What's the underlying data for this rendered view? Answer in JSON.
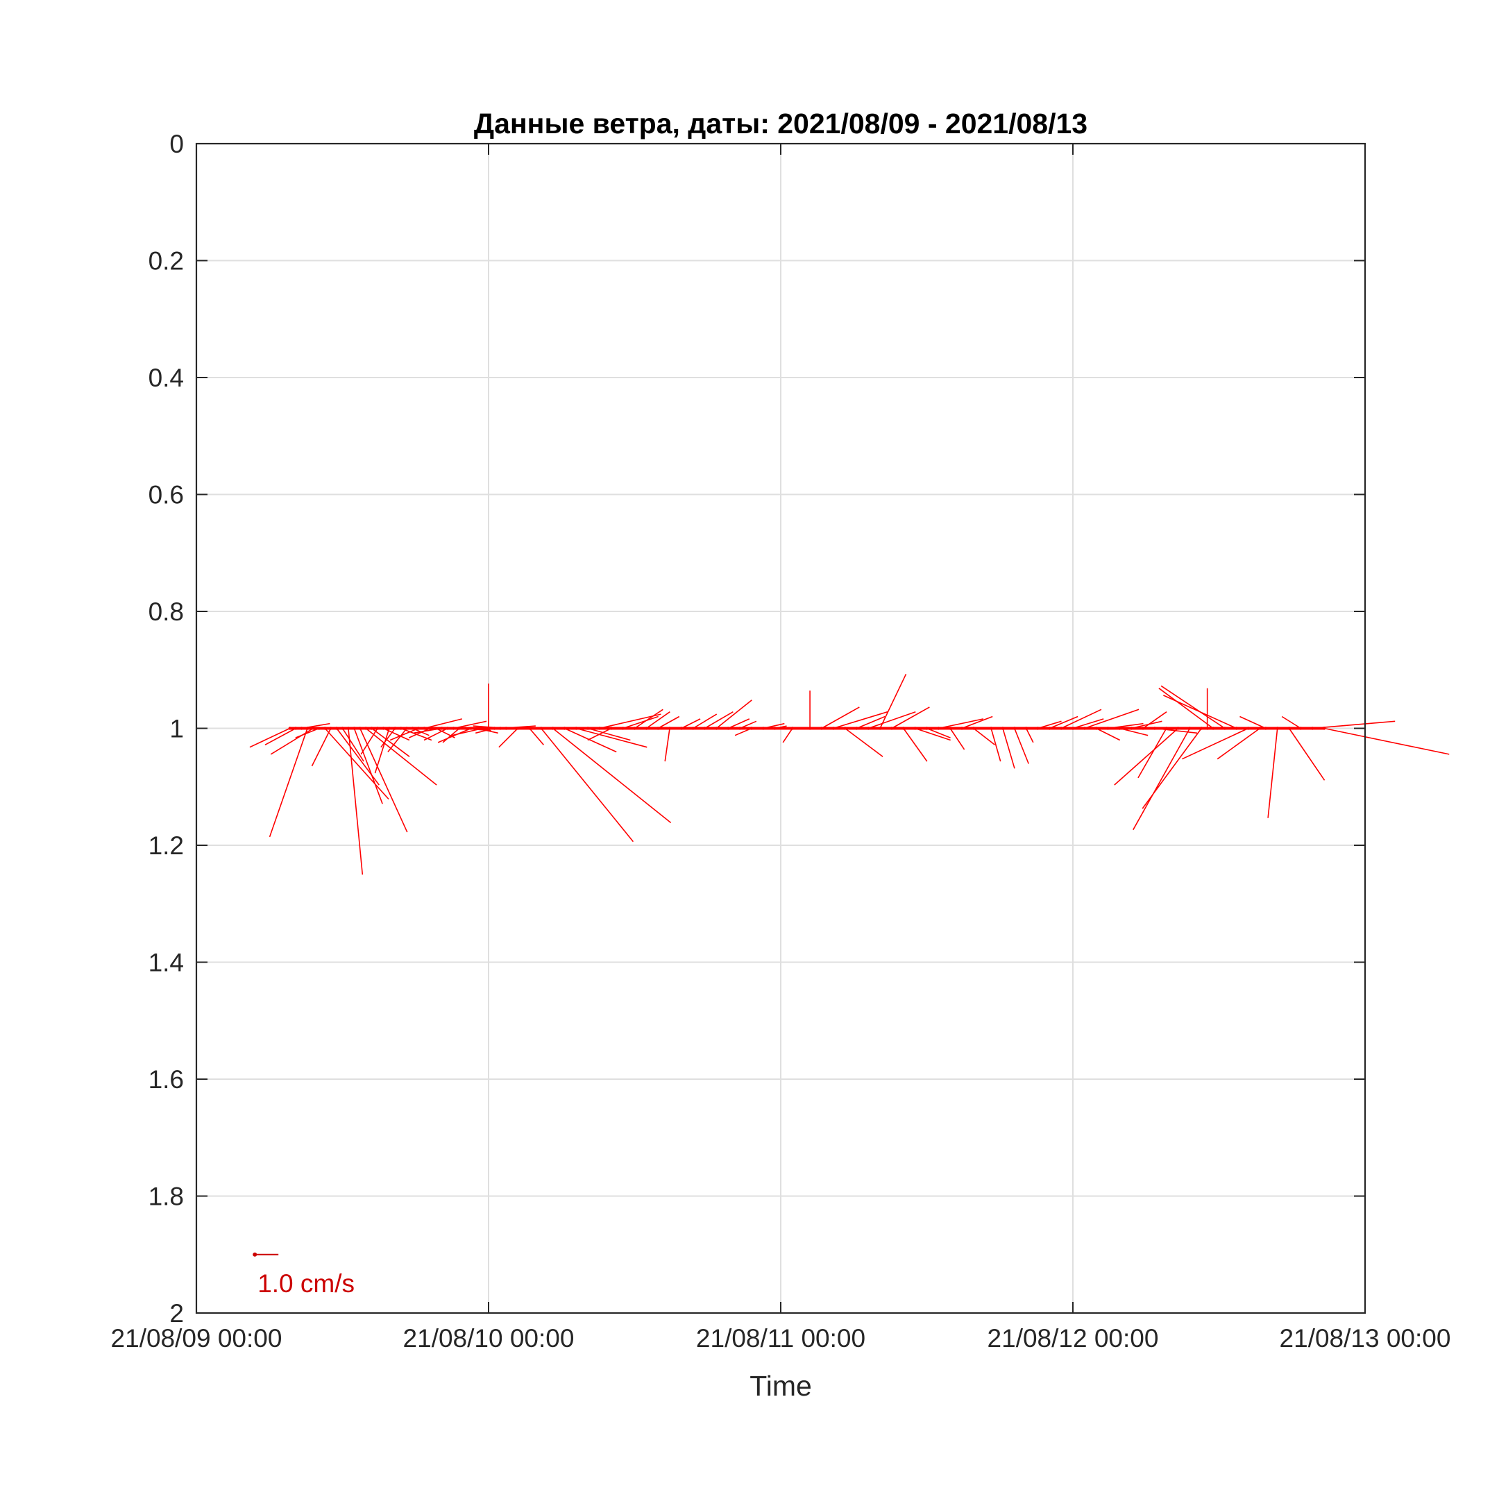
{
  "chart_data": {
    "type": "quiver",
    "title": "Данные ветра, даты: 2021/08/09 - 2021/08/13",
    "xlabel": "Time",
    "ylabel": "",
    "x_ticks": [
      "21/08/09 00:00",
      "21/08/10 00:00",
      "21/08/11 00:00",
      "21/08/12 00:00",
      "21/08/13 00:00"
    ],
    "y_ticks": [
      "0",
      "0.2",
      "0.4",
      "0.6",
      "0.8",
      "1",
      "1.2",
      "1.4",
      "1.6",
      "1.8",
      "2"
    ],
    "xlim": [
      0,
      4
    ],
    "ylim": [
      0,
      2
    ],
    "y_reversed": true,
    "grid": true,
    "color": "#ff0000",
    "baseline_y": 1.0,
    "scale_legend": {
      "label": "1.0 cm/s",
      "x": 0.2,
      "y": 1.9,
      "u": 1.0,
      "v": 0,
      "color": "#cc0000"
    },
    "vectors_note_units": "x = days since 2021/08/09 00:00, u/v = cm/s",
    "vectors": [
      {
        "x": 0.32,
        "u": -1.7,
        "v": -0.8
      },
      {
        "x": 0.34,
        "u": -1.3,
        "v": -0.7
      },
      {
        "x": 0.36,
        "u": 1.2,
        "v": 0.2
      },
      {
        "x": 0.38,
        "u": -1.6,
        "v": -4.6
      },
      {
        "x": 0.4,
        "u": -1.8,
        "v": -1.1
      },
      {
        "x": 0.42,
        "u": -1.0,
        "v": -0.4
      },
      {
        "x": 0.44,
        "u": 2.7,
        "v": -3.0
      },
      {
        "x": 0.46,
        "u": -0.8,
        "v": -1.6
      },
      {
        "x": 0.48,
        "u": 1.8,
        "v": -2.4
      },
      {
        "x": 0.5,
        "u": 0.9,
        "v": -1.4
      },
      {
        "x": 0.52,
        "u": 0.6,
        "v": -6.2
      },
      {
        "x": 0.54,
        "u": 1.2,
        "v": -3.2
      },
      {
        "x": 0.56,
        "u": 2.0,
        "v": -4.4
      },
      {
        "x": 0.58,
        "u": 3.0,
        "v": -2.4
      },
      {
        "x": 0.6,
        "u": 1.6,
        "v": -1.2
      },
      {
        "x": 0.62,
        "u": -0.7,
        "v": -1.1
      },
      {
        "x": 0.64,
        "u": 1.1,
        "v": -0.5
      },
      {
        "x": 0.66,
        "u": -0.6,
        "v": -1.9
      },
      {
        "x": 0.68,
        "u": -0.6,
        "v": -0.8
      },
      {
        "x": 0.7,
        "u": 1.3,
        "v": -0.5
      },
      {
        "x": 0.72,
        "u": -0.8,
        "v": -1.0
      },
      {
        "x": 0.74,
        "u": 0.7,
        "v": -0.3
      },
      {
        "x": 0.76,
        "u": -1.2,
        "v": -0.5
      },
      {
        "x": 0.78,
        "u": 1.6,
        "v": 0.4
      },
      {
        "x": 0.8,
        "u": -0.9,
        "v": -0.4
      },
      {
        "x": 0.82,
        "u": 0.8,
        "v": -0.4
      },
      {
        "x": 0.84,
        "u": -1.2,
        "v": -0.2
      },
      {
        "x": 0.86,
        "u": -1.0,
        "v": -0.5
      },
      {
        "x": 0.88,
        "u": 1.4,
        "v": 0.3
      },
      {
        "x": 0.9,
        "u": -0.7,
        "v": -0.6
      },
      {
        "x": 0.92,
        "u": 1.1,
        "v": -0.1
      },
      {
        "x": 0.94,
        "u": -1.4,
        "v": -0.6
      },
      {
        "x": 0.96,
        "u": 0.9,
        "v": -0.2
      },
      {
        "x": 0.98,
        "u": -1.3,
        "v": -0.3
      },
      {
        "x": 1.0,
        "u": 0.0,
        "v": 1.9
      },
      {
        "x": 1.02,
        "u": -0.8,
        "v": -0.2
      },
      {
        "x": 1.04,
        "u": 1.5,
        "v": 0.1
      },
      {
        "x": 1.06,
        "u": -1.4,
        "v": 0.1
      },
      {
        "x": 1.1,
        "u": -0.8,
        "v": -0.8
      },
      {
        "x": 1.14,
        "u": 0.6,
        "v": -0.7
      },
      {
        "x": 1.18,
        "u": 3.9,
        "v": -4.8
      },
      {
        "x": 1.22,
        "u": 5.0,
        "v": -4.0
      },
      {
        "x": 1.26,
        "u": 2.2,
        "v": -1.0
      },
      {
        "x": 1.3,
        "u": 3.0,
        "v": -0.8
      },
      {
        "x": 1.34,
        "u": 1.8,
        "v": -0.5
      },
      {
        "x": 1.38,
        "u": 2.6,
        "v": 0.6
      },
      {
        "x": 1.42,
        "u": -1.0,
        "v": -0.5
      },
      {
        "x": 1.46,
        "u": 1.5,
        "v": 0.5
      },
      {
        "x": 1.5,
        "u": 1.2,
        "v": 0.8
      },
      {
        "x": 1.54,
        "u": 1.0,
        "v": 0.7
      },
      {
        "x": 1.58,
        "u": 0.9,
        "v": 0.5
      },
      {
        "x": 1.62,
        "u": -0.2,
        "v": -1.4
      },
      {
        "x": 1.66,
        "u": 0.8,
        "v": 0.4
      },
      {
        "x": 1.7,
        "u": 1.0,
        "v": 0.6
      },
      {
        "x": 1.74,
        "u": 1.2,
        "v": 0.7
      },
      {
        "x": 1.78,
        "u": 1.5,
        "v": 1.2
      },
      {
        "x": 1.82,
        "u": 0.9,
        "v": 0.4
      },
      {
        "x": 1.86,
        "u": 0.7,
        "v": 0.3
      },
      {
        "x": 1.9,
        "u": -0.7,
        "v": -0.3
      },
      {
        "x": 1.94,
        "u": 0.9,
        "v": 0.2
      },
      {
        "x": 1.98,
        "u": 0.5,
        "v": 0.1
      },
      {
        "x": 2.04,
        "u": -0.4,
        "v": -0.6
      },
      {
        "x": 2.1,
        "u": 0.0,
        "v": 1.6
      },
      {
        "x": 2.14,
        "u": 1.6,
        "v": 0.9
      },
      {
        "x": 2.18,
        "u": 2.3,
        "v": 0.7
      },
      {
        "x": 2.22,
        "u": 1.6,
        "v": -1.2
      },
      {
        "x": 2.26,
        "u": 1.2,
        "v": 0.5
      },
      {
        "x": 2.3,
        "u": 2.0,
        "v": 0.7
      },
      {
        "x": 2.34,
        "u": 1.1,
        "v": 2.3
      },
      {
        "x": 2.38,
        "u": 1.6,
        "v": 0.9
      },
      {
        "x": 2.42,
        "u": 1.0,
        "v": -1.4
      },
      {
        "x": 2.46,
        "u": 1.5,
        "v": -0.5
      },
      {
        "x": 2.5,
        "u": 1.0,
        "v": -0.4
      },
      {
        "x": 2.54,
        "u": 1.9,
        "v": 0.4
      },
      {
        "x": 2.58,
        "u": 0.6,
        "v": -0.9
      },
      {
        "x": 2.62,
        "u": 1.3,
        "v": 0.5
      },
      {
        "x": 2.66,
        "u": 0.9,
        "v": -0.7
      },
      {
        "x": 2.72,
        "u": 0.4,
        "v": -1.4
      },
      {
        "x": 2.76,
        "u": 0.5,
        "v": -1.7
      },
      {
        "x": 2.8,
        "u": 0.6,
        "v": -1.5
      },
      {
        "x": 2.84,
        "u": 0.3,
        "v": -0.6
      },
      {
        "x": 2.88,
        "u": 1.0,
        "v": 0.3
      },
      {
        "x": 2.92,
        "u": 1.2,
        "v": 0.5
      },
      {
        "x": 2.96,
        "u": 1.7,
        "v": 0.8
      },
      {
        "x": 3.0,
        "u": 1.3,
        "v": 0.4
      },
      {
        "x": 3.04,
        "u": 2.3,
        "v": 0.8
      },
      {
        "x": 3.08,
        "u": 1.0,
        "v": -0.5
      },
      {
        "x": 3.12,
        "u": 1.5,
        "v": 0.2
      },
      {
        "x": 3.16,
        "u": 1.2,
        "v": -0.3
      },
      {
        "x": 3.2,
        "u": 1.3,
        "v": 0.3
      },
      {
        "x": 3.24,
        "u": 1.0,
        "v": 0.7
      },
      {
        "x": 3.28,
        "u": 1.8,
        "v": -0.2
      },
      {
        "x": 3.32,
        "u": -1.2,
        "v": -2.1
      },
      {
        "x": 3.36,
        "u": -2.7,
        "v": -2.4
      },
      {
        "x": 3.4,
        "u": -2.4,
        "v": -4.3
      },
      {
        "x": 3.44,
        "u": -2.5,
        "v": -3.4
      },
      {
        "x": 3.46,
        "u": 0.0,
        "v": 1.7
      },
      {
        "x": 3.48,
        "u": -2.3,
        "v": 1.7
      },
      {
        "x": 3.52,
        "u": -2.7,
        "v": 1.8
      },
      {
        "x": 3.56,
        "u": -3.1,
        "v": 1.4
      },
      {
        "x": 3.6,
        "u": -2.8,
        "v": -1.3
      },
      {
        "x": 3.64,
        "u": -1.8,
        "v": -1.3
      },
      {
        "x": 3.66,
        "u": -1.1,
        "v": 0.5
      },
      {
        "x": 3.7,
        "u": -0.4,
        "v": -3.8
      },
      {
        "x": 3.74,
        "u": 1.5,
        "v": -2.2
      },
      {
        "x": 3.78,
        "u": -0.8,
        "v": 0.5
      },
      {
        "x": 3.82,
        "u": 3.5,
        "v": 0.3
      },
      {
        "x": 3.86,
        "u": 5.3,
        "v": -1.1
      }
    ]
  }
}
